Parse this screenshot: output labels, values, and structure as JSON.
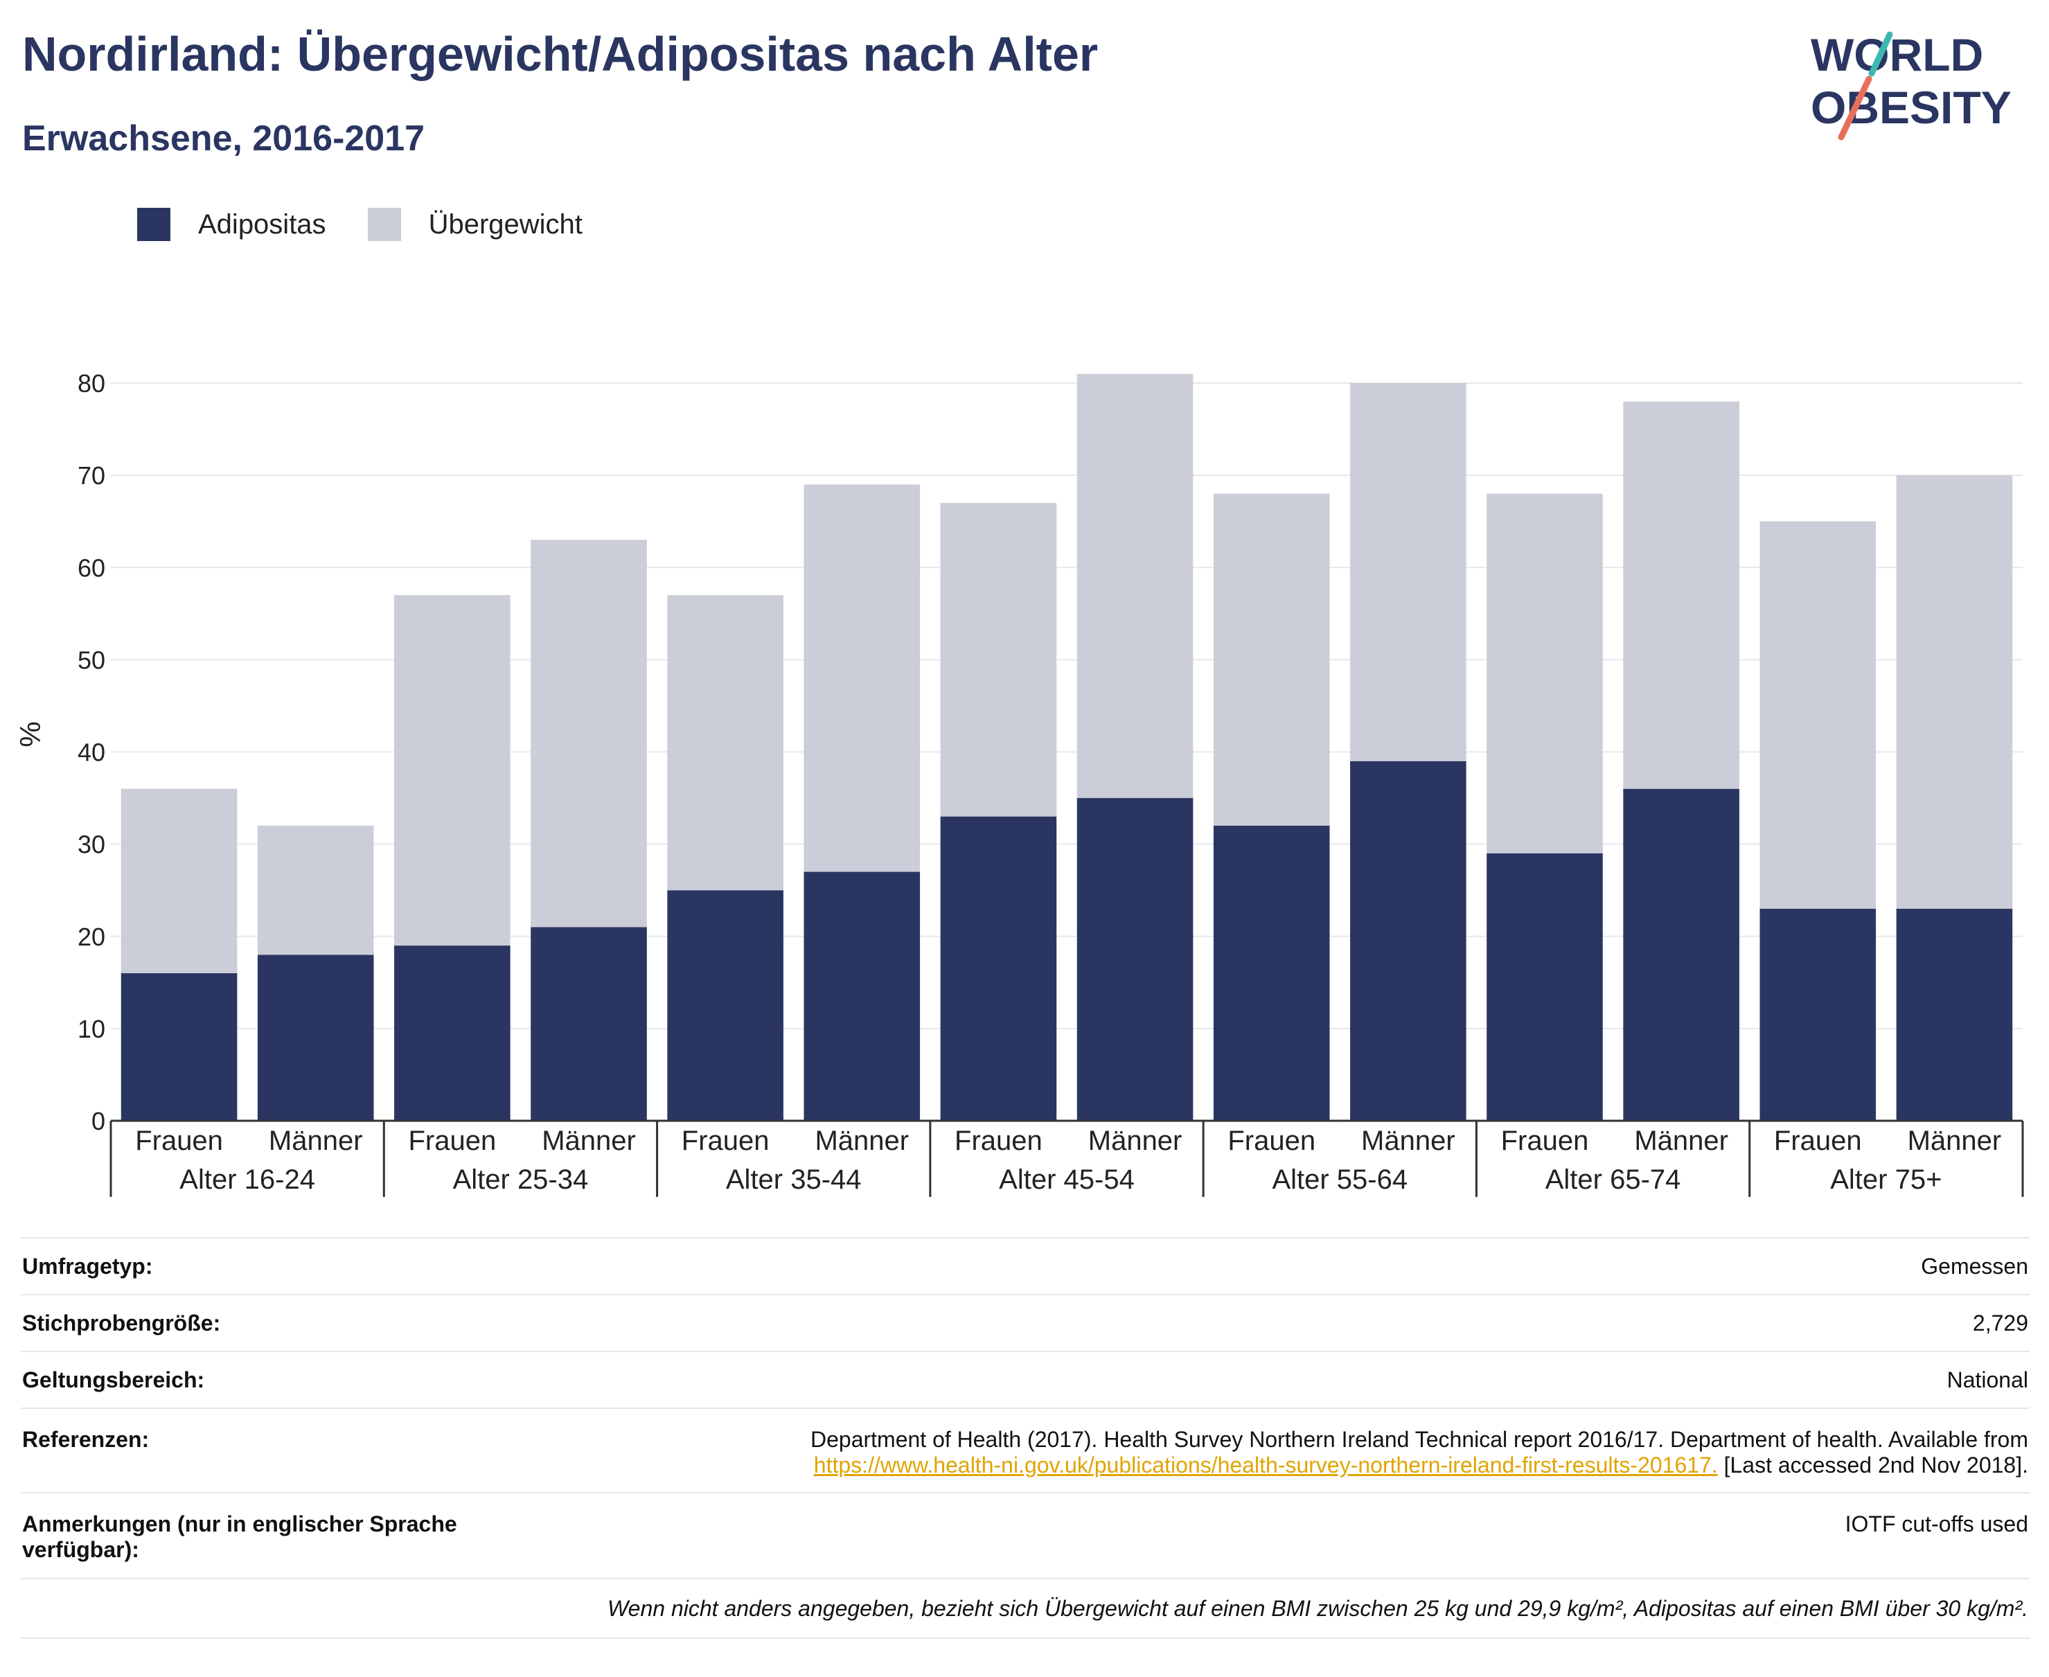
{
  "header": {
    "title": "Nordirland: Übergewicht/Adipositas nach Alter",
    "subtitle": "Erwachsene, 2016-2017"
  },
  "logo": {
    "line1": "WORLD",
    "line2": "OBESITY"
  },
  "legend": {
    "items": [
      {
        "label": "Adipositas",
        "color": "#2a3561"
      },
      {
        "label": "Übergewicht",
        "color": "#cbcdd8"
      }
    ]
  },
  "chart_data": {
    "type": "bar",
    "stacked": true,
    "ylabel": "%",
    "ylim": [
      0,
      82
    ],
    "yticks": [
      0,
      10,
      20,
      30,
      40,
      50,
      60,
      70,
      80
    ],
    "grid": true,
    "legend_position": "top-left",
    "groups": [
      "Alter 16-24",
      "Alter 25-34",
      "Alter 35-44",
      "Alter 45-54",
      "Alter 55-64",
      "Alter 65-74",
      "Alter 75+"
    ],
    "subcategories": [
      "Frauen",
      "Männer"
    ],
    "series": [
      {
        "name": "Adipositas",
        "color": "#2a3561",
        "values": [
          16,
          18,
          19,
          21,
          25,
          27,
          33,
          35,
          32,
          39,
          29,
          36,
          23,
          23
        ]
      },
      {
        "name": "Übergewicht",
        "color": "#cbcdd8",
        "values": [
          20,
          14,
          38,
          42,
          32,
          42,
          34,
          46,
          36,
          41,
          39,
          42,
          42,
          47
        ]
      }
    ]
  },
  "info": {
    "survey_type_label": "Umfragetyp:",
    "survey_type_value": "Gemessen",
    "sample_size_label": "Stichprobengröße:",
    "sample_size_value": "2,729",
    "scope_label": "Geltungsbereich:",
    "scope_value": "National",
    "references_label": "Referenzen:",
    "references_text": "Department of Health (2017). Health Survey Northern Ireland Technical report 2016/17. Department of health. Available from",
    "references_link": "https://www.health-ni.gov.uk/publications/health-survey-northern-ireland-first-results-201617.",
    "references_suffix": " [Last accessed 2nd Nov 2018].",
    "notes_label_1": "Anmerkungen (nur in englischer Sprache",
    "notes_label_2": "verfügbar):",
    "notes_value": "IOTF cut-offs used",
    "footnote": "Wenn nicht anders angegeben, bezieht sich Übergewicht auf einen BMI zwischen 25 kg und 29,9 kg/m², Adipositas auf einen BMI über 30 kg/m²."
  }
}
